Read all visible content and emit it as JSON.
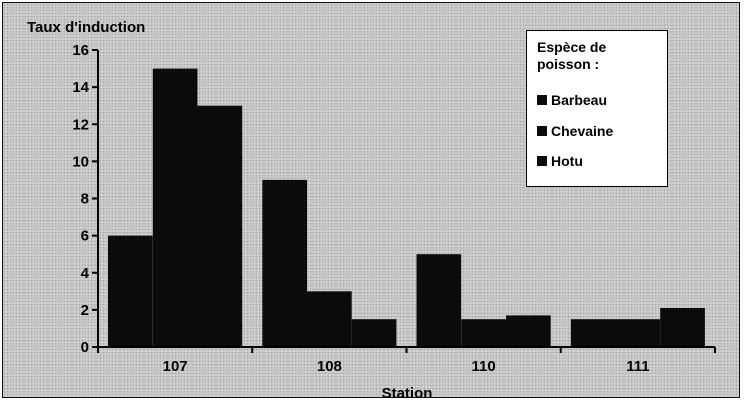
{
  "chart_data": {
    "type": "bar",
    "title": "",
    "ylabel": "Taux d'induction",
    "xlabel": "Station",
    "categories": [
      "107",
      "108",
      "110",
      "111"
    ],
    "ylim": [
      0,
      16
    ],
    "yticks": [
      0,
      2,
      4,
      6,
      8,
      10,
      12,
      14,
      16
    ],
    "series": [
      {
        "name": "Barbeau",
        "values": [
          6,
          9,
          5,
          1.5
        ]
      },
      {
        "name": "Chevaine",
        "values": [
          15,
          3,
          1.5,
          1.5
        ]
      },
      {
        "name": "Hotu",
        "values": [
          13,
          1.5,
          1.7,
          2.1
        ]
      }
    ],
    "grid": false,
    "legend": {
      "title_line1": "Espèce de",
      "title_line2": "poisson :",
      "placement": "top-right"
    },
    "colors": {
      "bars": "#0b0b0b",
      "axis": "#000000"
    }
  }
}
